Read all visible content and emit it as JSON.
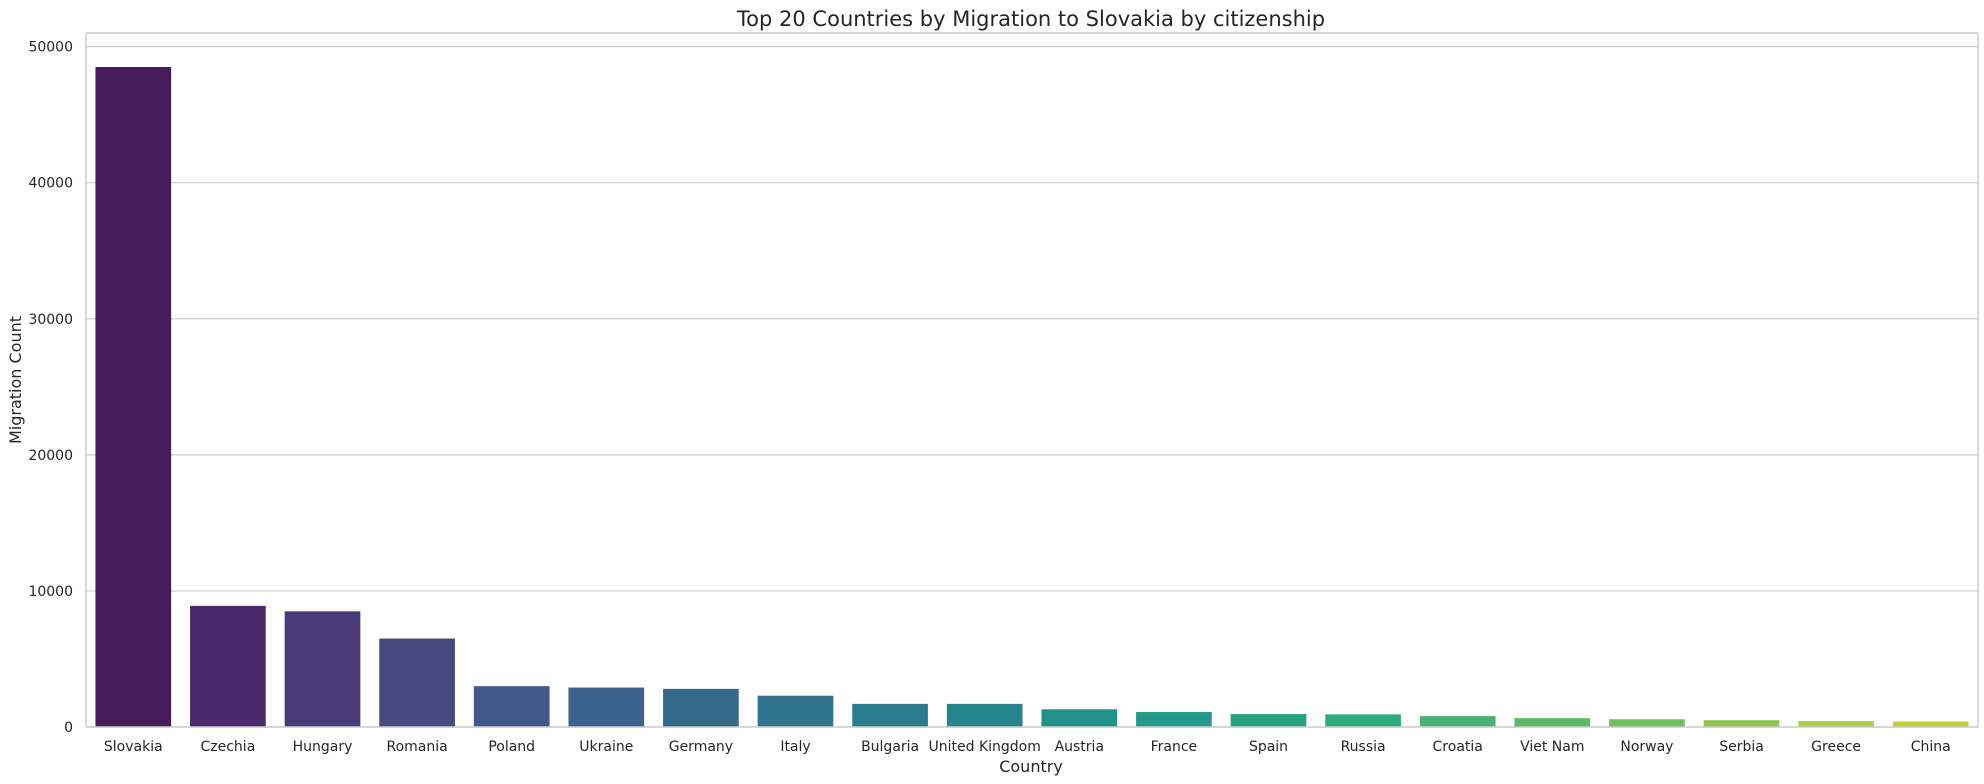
{
  "chart_data": {
    "type": "bar",
    "title": "Top 20 Countries by Migration to Slovakia by citizenship",
    "xlabel": "Country",
    "ylabel": "Migration Count",
    "categories": [
      "Slovakia",
      "Czechia",
      "Hungary",
      "Romania",
      "Poland",
      "Ukraine",
      "Germany",
      "Italy",
      "Bulgaria",
      "United Kingdom",
      "Austria",
      "France",
      "Spain",
      "Russia",
      "Croatia",
      "Viet Nam",
      "Norway",
      "Serbia",
      "Greece",
      "China"
    ],
    "values": [
      48500,
      8900,
      8500,
      6500,
      3000,
      2900,
      2800,
      2300,
      1700,
      1700,
      1300,
      1100,
      950,
      930,
      800,
      650,
      570,
      500,
      430,
      400
    ],
    "ylim": [
      0,
      51000
    ],
    "yticks": [
      "0",
      "10000",
      "20000",
      "30000",
      "40000",
      "50000"
    ],
    "grid": "horizontal",
    "colors": [
      "#471c5b",
      "#4a2a6a",
      "#473a76",
      "#46497e",
      "#3f5989",
      "#3a628c",
      "#356a8c",
      "#2f738d",
      "#2a7d8d",
      "#26848c",
      "#22908b",
      "#22998a",
      "#27a384",
      "#31aa7e",
      "#46b372",
      "#5aba66",
      "#6fc15e",
      "#8ec74f",
      "#aace42",
      "#c4d034"
    ]
  }
}
